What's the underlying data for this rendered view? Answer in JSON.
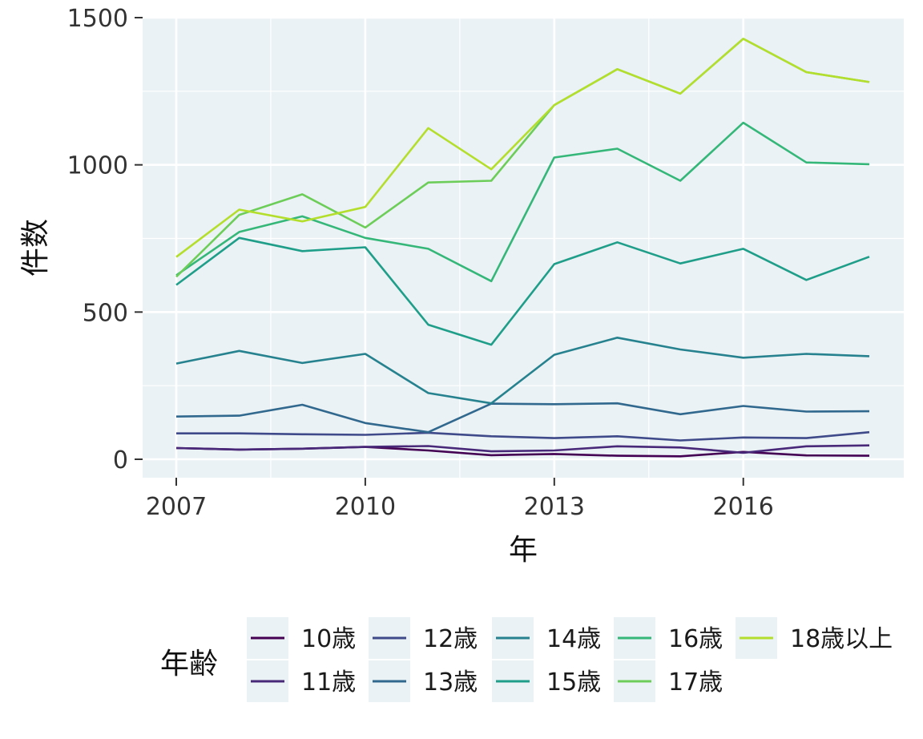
{
  "chart_data": {
    "type": "line",
    "xlabel": "年",
    "ylabel": "件数",
    "x": [
      2007,
      2008,
      2009,
      2010,
      2011,
      2012,
      2013,
      2014,
      2015,
      2016,
      2017,
      2018
    ],
    "xlim": [
      2007,
      2018
    ],
    "ylim": [
      0,
      1500
    ],
    "x_ticks": [
      "2007",
      "2010",
      "2013",
      "2016"
    ],
    "y_ticks": [
      "0",
      "500",
      "1000",
      "1500"
    ],
    "grid": true,
    "legend": {
      "title": "年齢",
      "position": "bottom"
    },
    "series": [
      {
        "name": "10歳",
        "color": "#440154",
        "values": [
          38,
          33,
          36,
          42,
          30,
          14,
          18,
          12,
          10,
          25,
          13,
          12
        ]
      },
      {
        "name": "11歳",
        "color": "#482878",
        "values": [
          38,
          33,
          36,
          42,
          45,
          27,
          30,
          44,
          40,
          22,
          44,
          47
        ]
      },
      {
        "name": "12歳",
        "color": "#3E4A89",
        "values": [
          88,
          88,
          85,
          83,
          90,
          78,
          72,
          78,
          64,
          74,
          72,
          92
        ]
      },
      {
        "name": "13歳",
        "color": "#31688E",
        "values": [
          145,
          148,
          185,
          123,
          92,
          189,
          187,
          190,
          153,
          181,
          162,
          163
        ]
      },
      {
        "name": "14歳",
        "color": "#26828E",
        "values": [
          325,
          368,
          327,
          358,
          225,
          190,
          355,
          413,
          373,
          345,
          358,
          350
        ]
      },
      {
        "name": "15歳",
        "color": "#1F9E89",
        "values": [
          592,
          752,
          707,
          720,
          457,
          389,
          663,
          737,
          665,
          715,
          609,
          688
        ]
      },
      {
        "name": "16歳",
        "color": "#35B779",
        "values": [
          625,
          772,
          825,
          752,
          715,
          605,
          1025,
          1055,
          946,
          1143,
          1008,
          1002
        ]
      },
      {
        "name": "17歳",
        "color": "#6DCD59",
        "values": [
          620,
          830,
          900,
          787,
          940,
          946,
          1203,
          1325,
          1242,
          1428,
          1315,
          1281
        ]
      },
      {
        "name": "18歳以上",
        "color": "#B4DE2C",
        "values": [
          687,
          848,
          808,
          857,
          1125,
          985,
          1203,
          1325,
          1242,
          1428,
          1315,
          1281
        ]
      }
    ]
  }
}
